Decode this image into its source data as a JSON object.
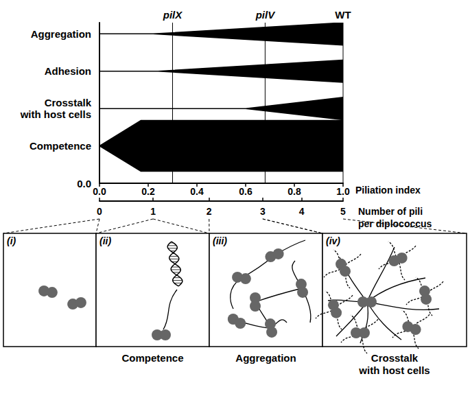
{
  "chart_data": {
    "type": "band",
    "x_label": "Piliation index",
    "xlim": [
      0,
      1
    ],
    "xticks": [
      {
        "value": 0,
        "label": "0.0"
      },
      {
        "value": 0.2,
        "label": "0.2"
      },
      {
        "value": 0.4,
        "label": "0.4"
      },
      {
        "value": 0.6,
        "label": "0.6"
      },
      {
        "value": 0.8,
        "label": "0.8"
      },
      {
        "value": 1,
        "label": "1.0"
      }
    ],
    "ylim": [
      0,
      4.3
    ],
    "yticks": [
      {
        "value": 0,
        "label": "0.0"
      }
    ],
    "series": [
      {
        "name": "Aggregation",
        "level": 4,
        "color": "#000000",
        "x": [
          0,
          0.22,
          1
        ],
        "values": [
          0,
          0,
          0.3
        ]
      },
      {
        "name": "Adhesion",
        "level": 3,
        "color": "#000000",
        "x": [
          0,
          0.24,
          1
        ],
        "values": [
          0,
          0,
          0.3
        ]
      },
      {
        "name": "Crosstalk\nwith host cells",
        "level": 2,
        "color": "#000000",
        "x": [
          0,
          0.6,
          1
        ],
        "values": [
          0,
          0,
          0.3
        ]
      },
      {
        "name": "Competence",
        "level": 1,
        "color": "#000000",
        "x": [
          0,
          0.17,
          1
        ],
        "values": [
          0,
          0.68,
          0.68
        ]
      }
    ],
    "mutants": [
      {
        "label": "pilX",
        "x": 0.3
      },
      {
        "label": "pilV",
        "x": 0.68
      },
      {
        "label": "WT",
        "x": 1
      }
    ],
    "pili_axis": {
      "label": "Number of pili\nper diplococcus",
      "ticks": [
        0,
        1,
        2,
        3,
        4,
        5
      ],
      "piliation_index": [
        0,
        0.22,
        0.45,
        0.67,
        0.83,
        1
      ]
    }
  },
  "panels": [
    {
      "label": "(i)",
      "pili": [
        0,
        0
      ]
    },
    {
      "label": "(ii)",
      "pili": [
        1,
        1
      ],
      "caption": "Competence"
    },
    {
      "label": "(iii)",
      "pili": [
        2,
        3
      ],
      "caption": "Aggregation"
    },
    {
      "label": "(iv)",
      "pili": [
        3,
        5
      ],
      "caption": "Crosstalk\nwith host cells"
    }
  ]
}
